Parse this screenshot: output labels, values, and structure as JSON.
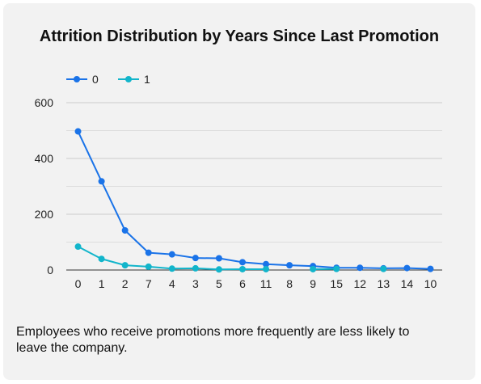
{
  "chart_data": {
    "type": "line",
    "title": "Attrition Distribution by Years Since Last Promotion",
    "xlabel": "",
    "ylabel": "",
    "categories": [
      "0",
      "1",
      "2",
      "7",
      "4",
      "3",
      "5",
      "6",
      "11",
      "8",
      "9",
      "15",
      "12",
      "13",
      "14",
      "10"
    ],
    "series": [
      {
        "name": "0",
        "color": "#1a73e8",
        "values": [
          497,
          318,
          142,
          62,
          56,
          43,
          42,
          28,
          21,
          17,
          14,
          8,
          8,
          6,
          7,
          4
        ]
      },
      {
        "name": "1",
        "color": "#12b5cb",
        "values": [
          84,
          40,
          17,
          12,
          5,
          6,
          2,
          3,
          3,
          null,
          3,
          4,
          null,
          4,
          null,
          null
        ]
      }
    ],
    "ylim": [
      0,
      600
    ],
    "yticks": [
      "0",
      "200",
      "400",
      "600"
    ],
    "grid": true,
    "legend": "top-left"
  },
  "caption": "Employees who receive promotions more frequently are less likely to leave the company."
}
